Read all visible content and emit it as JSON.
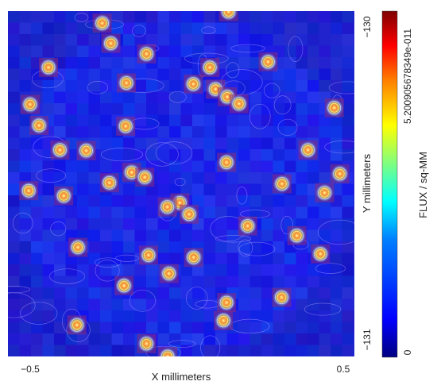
{
  "chart_data": {
    "type": "heatmap",
    "title": "",
    "xlabel": "X millimeters",
    "ylabel": "Y millimeters",
    "colorbar_label": "FLUX / sq-MM",
    "xlim": [
      -0.5,
      0.5
    ],
    "ylim": [
      -131,
      -130
    ],
    "x_ticks": [
      "−0.5",
      "0.5"
    ],
    "y_ticks": [
      "−130",
      "−131"
    ],
    "colorbar_ticks": [
      "5.200905678349e-011",
      "0"
    ],
    "colorbar_range": [
      0,
      5.200905678349e-11
    ],
    "colormap": [
      "#00007f",
      "#0000ff",
      "#007fff",
      "#00ffff",
      "#7fff7f",
      "#ffff00",
      "#ff7f00",
      "#ff0000",
      "#7f0000"
    ],
    "background_color": "#1a2fa8",
    "contour_color": "#c8b4ff",
    "grid": false,
    "sources": [
      {
        "x": -0.228,
        "y": -130.035
      },
      {
        "x": 0.137,
        "y": -130.002
      },
      {
        "x": -0.203,
        "y": -130.093
      },
      {
        "x": -0.1,
        "y": -130.124
      },
      {
        "x": -0.383,
        "y": -130.163
      },
      {
        "x": 0.083,
        "y": -130.163
      },
      {
        "x": 0.251,
        "y": -130.147
      },
      {
        "x": -0.158,
        "y": -130.208
      },
      {
        "x": 0.099,
        "y": -130.226
      },
      {
        "x": 0.035,
        "y": -130.211
      },
      {
        "x": 0.133,
        "y": -130.248
      },
      {
        "x": 0.167,
        "y": -130.268
      },
      {
        "x": -0.436,
        "y": -130.27
      },
      {
        "x": 0.442,
        "y": -130.28
      },
      {
        "x": -0.41,
        "y": -130.331
      },
      {
        "x": -0.16,
        "y": -130.333
      },
      {
        "x": -0.35,
        "y": -130.402
      },
      {
        "x": -0.274,
        "y": -130.404
      },
      {
        "x": 0.131,
        "y": -130.438
      },
      {
        "x": 0.366,
        "y": -130.402
      },
      {
        "x": -0.143,
        "y": -130.467
      },
      {
        "x": -0.207,
        "y": -130.497
      },
      {
        "x": -0.105,
        "y": -130.481
      },
      {
        "x": 0.458,
        "y": -130.471
      },
      {
        "x": 0.291,
        "y": -130.5
      },
      {
        "x": -0.44,
        "y": -130.52
      },
      {
        "x": -0.339,
        "y": -130.535
      },
      {
        "x": 0.414,
        "y": -130.526
      },
      {
        "x": -0.004,
        "y": -130.555
      },
      {
        "x": 0.023,
        "y": -130.588
      },
      {
        "x": -0.04,
        "y": -130.567
      },
      {
        "x": 0.192,
        "y": -130.622
      },
      {
        "x": 0.334,
        "y": -130.65
      },
      {
        "x": -0.298,
        "y": -130.684
      },
      {
        "x": 0.036,
        "y": -130.713
      },
      {
        "x": -0.094,
        "y": -130.707
      },
      {
        "x": 0.402,
        "y": -130.703
      },
      {
        "x": -0.035,
        "y": -130.76
      },
      {
        "x": -0.165,
        "y": -130.795
      },
      {
        "x": 0.29,
        "y": -130.829
      },
      {
        "x": 0.131,
        "y": -130.844
      },
      {
        "x": -0.301,
        "y": -130.909
      },
      {
        "x": 0.122,
        "y": -130.896
      },
      {
        "x": -0.1,
        "y": -130.963
      },
      {
        "x": -0.039,
        "y": -131.0
      }
    ]
  }
}
